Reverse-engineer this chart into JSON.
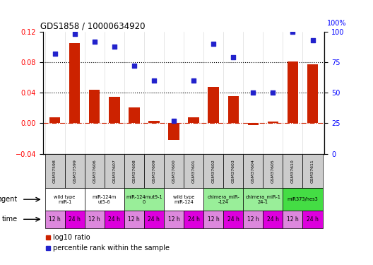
{
  "title": "GDS1858 / 10000634920",
  "samples": [
    "GSM37598",
    "GSM37599",
    "GSM37606",
    "GSM37607",
    "GSM37608",
    "GSM37609",
    "GSM37600",
    "GSM37601",
    "GSM37602",
    "GSM37603",
    "GSM37604",
    "GSM37605",
    "GSM37610",
    "GSM37611"
  ],
  "log10_ratio": [
    0.008,
    0.105,
    0.044,
    0.035,
    0.021,
    0.003,
    -0.022,
    0.008,
    0.048,
    0.036,
    -0.002,
    0.002,
    0.081,
    0.077
  ],
  "percentile_rank": [
    82,
    98,
    92,
    88,
    72,
    60,
    27,
    60,
    90,
    79,
    50,
    50,
    100,
    93
  ],
  "ylim_left": [
    -0.04,
    0.12
  ],
  "ylim_right": [
    0,
    100
  ],
  "yticks_left": [
    -0.04,
    0,
    0.04,
    0.08,
    0.12
  ],
  "yticks_right": [
    0,
    25,
    50,
    75,
    100
  ],
  "hlines": [
    0.08,
    0.04
  ],
  "bar_color": "#cc2200",
  "scatter_color": "#2222cc",
  "zero_line_color": "#cc2200",
  "agent_groups": [
    {
      "label": "wild type\nmiR-1",
      "start": 0,
      "end": 2,
      "color": "#ffffff"
    },
    {
      "label": "miR-124m\nut5-6",
      "start": 2,
      "end": 4,
      "color": "#ffffff"
    },
    {
      "label": "miR-124mut9-1\n0",
      "start": 4,
      "end": 6,
      "color": "#99ee99"
    },
    {
      "label": "wild type\nmiR-124",
      "start": 6,
      "end": 8,
      "color": "#ffffff"
    },
    {
      "label": "chimera_miR-\n-124",
      "start": 8,
      "end": 10,
      "color": "#99ee99"
    },
    {
      "label": "chimera_miR-1\n24-1",
      "start": 10,
      "end": 12,
      "color": "#99ee99"
    },
    {
      "label": "miR373/hes3",
      "start": 12,
      "end": 14,
      "color": "#44dd44"
    }
  ],
  "time_labels": [
    "12 h",
    "24 h",
    "12 h",
    "24 h",
    "12 h",
    "24 h",
    "12 h",
    "24 h",
    "12 h",
    "24 h",
    "12 h",
    "24 h",
    "12 h",
    "24 h"
  ],
  "time_colors_12": "#dd88dd",
  "time_colors_24": "#dd00dd",
  "header_color": "#cccccc",
  "legend_items": [
    {
      "label": "log10 ratio",
      "color": "#cc2200",
      "marker": "s"
    },
    {
      "label": "percentile rank within the sample",
      "color": "#2222cc",
      "marker": "s"
    }
  ]
}
